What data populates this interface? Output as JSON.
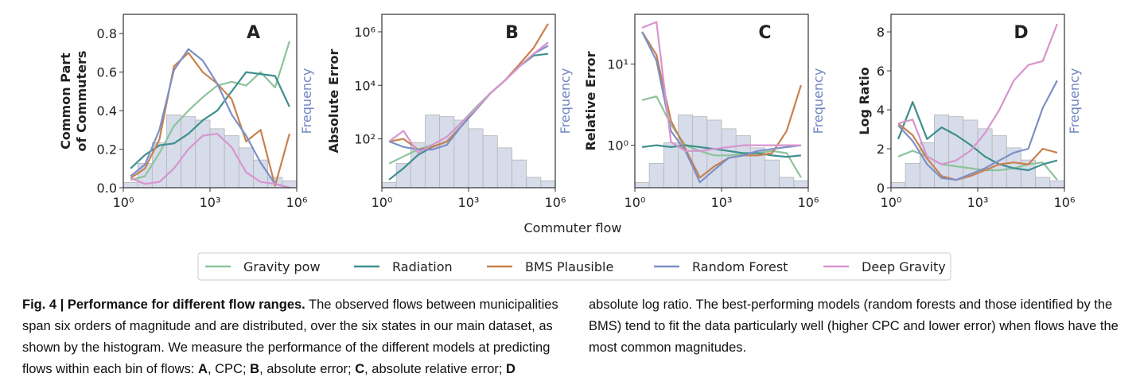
{
  "chart_data": [
    {
      "type": "line",
      "panel_label": "A",
      "ylabel": [
        "Common Part",
        "of Commuters"
      ],
      "y2label": "Frequency",
      "log_x": true,
      "log_y": false,
      "x": [
        1.78,
        5.62,
        17.8,
        56.2,
        178,
        562,
        1778,
        5623,
        17783,
        56234,
        177828,
        562341
      ],
      "xlim": [
        1,
        1000000
      ],
      "xticks": [
        {
          "value": 1,
          "label": "10⁰"
        },
        {
          "value": 1000,
          "label": "10³"
        },
        {
          "value": 1000000,
          "label": "10⁶"
        }
      ],
      "ylim": [
        0,
        0.9
      ],
      "yticks": [
        {
          "value": 0,
          "label": "0.0"
        },
        0.2,
        0.4,
        0.6,
        0.8
      ],
      "y2lim": [
        0,
        1
      ],
      "histogram": {
        "bins": [
          1,
          3.16,
          10,
          31.6,
          100,
          316,
          1000,
          3162,
          10000,
          31623,
          100000,
          316228,
          1000000
        ],
        "counts": [
          0.03,
          0.14,
          0.26,
          0.42,
          0.41,
          0.39,
          0.34,
          0.3,
          0.23,
          0.16,
          0.06,
          0.04
        ],
        "color": "#d6dcea"
      },
      "series": [
        {
          "name": "Gravity pow",
          "color": "#8cc39c",
          "values": [
            0.04,
            0.06,
            0.18,
            0.32,
            0.4,
            0.47,
            0.53,
            0.55,
            0.53,
            0.6,
            0.52,
            0.76
          ]
        },
        {
          "name": "Radiation",
          "color": "#3f8f8f",
          "values": [
            0.1,
            0.17,
            0.22,
            0.23,
            0.28,
            0.35,
            0.4,
            0.5,
            0.6,
            0.59,
            0.58,
            0.42
          ]
        },
        {
          "name": "BMS Plausible",
          "color": "#c8814f",
          "values": [
            0.05,
            0.1,
            0.25,
            0.63,
            0.7,
            0.6,
            0.54,
            0.46,
            0.24,
            0.3,
            0.01,
            0.28
          ]
        },
        {
          "name": "Random Forest",
          "color": "#7d90c6",
          "values": [
            0.06,
            0.12,
            0.3,
            0.61,
            0.72,
            0.66,
            0.54,
            0.38,
            0.27,
            0.13,
            0.02,
            0.0
          ]
        },
        {
          "name": "Deep Gravity",
          "color": "#d895cf",
          "values": [
            0.05,
            0.02,
            0.03,
            0.1,
            0.2,
            0.27,
            0.28,
            0.21,
            0.08,
            0.03,
            0.02,
            0.0
          ]
        }
      ]
    },
    {
      "type": "line",
      "panel_label": "B",
      "ylabel": [
        "Absolute Error"
      ],
      "y2label": "Frequency",
      "log_x": true,
      "log_y": true,
      "x": [
        1.78,
        5.62,
        17.8,
        56.2,
        178,
        562,
        1778,
        5623,
        17783,
        56234,
        177828,
        562341
      ],
      "xlim": [
        1,
        1000000
      ],
      "xticks": [
        {
          "value": 1,
          "label": "10⁰"
        },
        {
          "value": 1000,
          "label": "10³"
        },
        {
          "value": 1000000,
          "label": "10⁶"
        }
      ],
      "ylim": [
        1.5,
        4500000
      ],
      "yticks": [
        {
          "value": 100,
          "label": "10²"
        },
        {
          "value": 10000,
          "label": "10⁴"
        },
        {
          "value": 1000000,
          "label": "10⁶"
        }
      ],
      "y2lim": [
        0,
        1
      ],
      "histogram": {
        "bins": [
          1,
          3.16,
          10,
          31.6,
          100,
          316,
          1000,
          3162,
          10000,
          31623,
          100000,
          316228,
          1000000
        ],
        "counts": [
          0.03,
          0.14,
          0.26,
          0.42,
          0.41,
          0.39,
          0.34,
          0.3,
          0.23,
          0.16,
          0.06,
          0.04
        ],
        "color": "#d6dcea"
      },
      "series": [
        {
          "name": "Gravity pow",
          "color": "#8cc39c",
          "values": [
            12,
            22,
            40,
            60,
            120,
            400,
            1500,
            5000,
            15000,
            50000,
            150000,
            400000
          ]
        },
        {
          "name": "Radiation",
          "color": "#3f8f8f",
          "values": [
            3,
            8,
            25,
            50,
            80,
            300,
            1200,
            5000,
            15000,
            50000,
            130000,
            150000
          ]
        },
        {
          "name": "BMS Plausible",
          "color": "#c8814f",
          "values": [
            80,
            100,
            40,
            50,
            80,
            300,
            1200,
            5000,
            15000,
            60000,
            250000,
            2000000
          ]
        },
        {
          "name": "Random Forest",
          "color": "#7d90c6",
          "values": [
            80,
            50,
            40,
            40,
            60,
            300,
            1200,
            5000,
            15000,
            50000,
            150000,
            300000
          ]
        },
        {
          "name": "Deep Gravity",
          "color": "#d895cf",
          "values": [
            80,
            200,
            30,
            60,
            120,
            400,
            1300,
            5000,
            15000,
            50000,
            150000,
            400000
          ]
        }
      ]
    },
    {
      "type": "line",
      "panel_label": "C",
      "ylabel": [
        "Relative Error"
      ],
      "y2label": "Frequency",
      "log_x": true,
      "log_y": true,
      "x": [
        1.78,
        5.62,
        17.8,
        56.2,
        178,
        562,
        1778,
        5623,
        17783,
        56234,
        177828,
        562341
      ],
      "xlim": [
        1,
        1000000
      ],
      "xticks": [
        {
          "value": 1,
          "label": "10⁰"
        },
        {
          "value": 1000,
          "label": "10³"
        },
        {
          "value": 1000000,
          "label": "10⁶"
        }
      ],
      "ylim": [
        0.3,
        41
      ],
      "yticks": [
        {
          "value": 1,
          "label": "10⁰"
        },
        {
          "value": 10,
          "label": "10¹"
        }
      ],
      "y2lim": [
        0,
        1
      ],
      "histogram": {
        "bins": [
          1,
          3.16,
          10,
          31.6,
          100,
          316,
          1000,
          3162,
          10000,
          31623,
          100000,
          316228,
          1000000
        ],
        "counts": [
          0.03,
          0.14,
          0.26,
          0.42,
          0.41,
          0.39,
          0.34,
          0.3,
          0.23,
          0.16,
          0.06,
          0.04
        ],
        "color": "#d6dcea"
      },
      "series": [
        {
          "name": "Gravity pow",
          "color": "#8cc39c",
          "values": [
            3.6,
            4.0,
            1.8,
            1.0,
            0.85,
            0.75,
            0.75,
            0.78,
            0.8,
            0.85,
            0.8,
            0.4
          ]
        },
        {
          "name": "Radiation",
          "color": "#3f8f8f",
          "values": [
            0.95,
            1.0,
            0.95,
            1.0,
            0.95,
            0.9,
            0.85,
            0.8,
            0.8,
            0.75,
            0.72,
            0.75
          ]
        },
        {
          "name": "BMS Plausible",
          "color": "#c8814f",
          "values": [
            25,
            13,
            2.0,
            0.9,
            0.4,
            0.55,
            0.7,
            0.75,
            0.75,
            0.8,
            1.5,
            5.5
          ]
        },
        {
          "name": "Random Forest",
          "color": "#7d90c6",
          "values": [
            25,
            11,
            1.5,
            0.85,
            0.35,
            0.5,
            0.7,
            0.75,
            0.85,
            0.9,
            0.95,
            1.0
          ]
        },
        {
          "name": "Deep Gravity",
          "color": "#d895cf",
          "values": [
            28,
            33,
            1.1,
            0.85,
            0.85,
            0.9,
            0.95,
            1.0,
            1.0,
            1.0,
            1.0,
            1.0
          ]
        }
      ]
    },
    {
      "type": "line",
      "panel_label": "D",
      "ylabel": [
        "Log Ratio"
      ],
      "y2label": "Frequency",
      "log_x": true,
      "log_y": false,
      "x": [
        1.78,
        5.62,
        17.8,
        56.2,
        178,
        562,
        1778,
        5623,
        17783,
        56234,
        177828,
        562341
      ],
      "xlim": [
        1,
        1000000
      ],
      "xticks": [
        {
          "value": 1,
          "label": "10⁰"
        },
        {
          "value": 1000,
          "label": "10³"
        },
        {
          "value": 1000000,
          "label": "10⁶"
        }
      ],
      "ylim": [
        0,
        8.9
      ],
      "yticks": [
        0,
        2,
        4,
        6,
        8
      ],
      "y2lim": [
        0,
        1
      ],
      "histogram": {
        "bins": [
          1,
          3.16,
          10,
          31.6,
          100,
          316,
          1000,
          3162,
          10000,
          31623,
          100000,
          316228,
          1000000
        ],
        "counts": [
          0.03,
          0.14,
          0.26,
          0.42,
          0.41,
          0.39,
          0.34,
          0.3,
          0.23,
          0.16,
          0.06,
          0.04
        ],
        "color": "#d6dcea"
      },
      "series": [
        {
          "name": "Gravity pow",
          "color": "#8cc39c",
          "values": [
            1.6,
            1.9,
            1.6,
            1.2,
            1.1,
            1.0,
            0.9,
            0.9,
            1.0,
            1.2,
            1.3,
            0.4
          ]
        },
        {
          "name": "Radiation",
          "color": "#3f8f8f",
          "values": [
            2.5,
            4.4,
            2.5,
            3.1,
            2.7,
            2.2,
            1.6,
            1.2,
            1.0,
            0.9,
            1.2,
            1.4
          ]
        },
        {
          "name": "BMS Plausible",
          "color": "#c8814f",
          "values": [
            3.3,
            2.7,
            1.5,
            0.6,
            0.4,
            0.6,
            0.9,
            1.2,
            1.3,
            1.2,
            2.0,
            1.8
          ]
        },
        {
          "name": "Random Forest",
          "color": "#7d90c6",
          "values": [
            3.2,
            2.4,
            1.2,
            0.5,
            0.4,
            0.7,
            1.0,
            1.4,
            1.8,
            2.0,
            4.1,
            5.5
          ]
        },
        {
          "name": "Deep Gravity",
          "color": "#d895cf",
          "values": [
            3.3,
            3.5,
            1.6,
            1.2,
            1.4,
            1.9,
            2.8,
            4.0,
            5.5,
            6.3,
            6.5,
            8.4
          ]
        }
      ]
    }
  ],
  "figure": {
    "xlabel": "Commuter flow"
  },
  "caption": {
    "runs": [
      {
        "text": "Fig. 4 | Performance for different flow ranges.",
        "bold": true
      },
      {
        "text": " The observed flows between municipalities span six orders of magnitude and are distributed, over the six states in our main dataset, as shown by the histogram. We measure the performance of the different models at predicting flows within each bin of flows: ",
        "bold": false
      },
      {
        "text": "A",
        "bold": true
      },
      {
        "text": ", CPC; ",
        "bold": false
      },
      {
        "text": "B",
        "bold": true
      },
      {
        "text": ", absolute error; ",
        "bold": false
      },
      {
        "text": "C",
        "bold": true
      },
      {
        "text": ", absolute relative error; ",
        "bold": false
      },
      {
        "text": "D",
        "bold": true
      },
      {
        "text": " absolute log ratio. The best-performing models (random forests and those identified by the BMS) tend to fit the data particularly well (higher CPC and lower error) when flows have the most common magnitudes.",
        "bold": false
      }
    ]
  }
}
